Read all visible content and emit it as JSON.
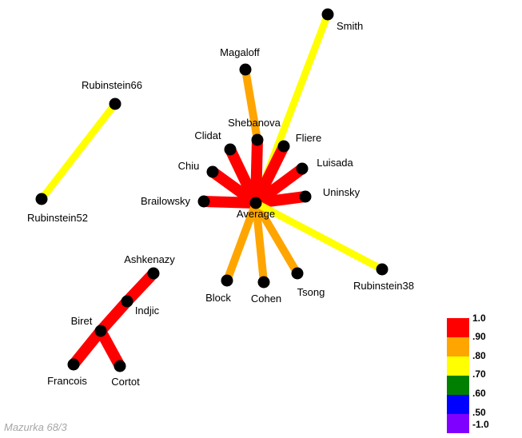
{
  "caption": "Mazurka 68/3",
  "colors": {
    "very_high": "#ff0000",
    "high": "#ffa500",
    "medium": "#ffff00",
    "low": "#008000",
    "lower": "#0000ff",
    "lowest": "#8000ff",
    "node": "#000000"
  },
  "legend": {
    "labels": [
      "1.0",
      ".90",
      ".80",
      ".70",
      ".60",
      ".50",
      "-1.0"
    ],
    "colors": [
      "#ff0000",
      "#ffa500",
      "#ffff00",
      "#008000",
      "#0000ff",
      "#8000ff"
    ]
  },
  "nodes": [
    {
      "id": "average",
      "label": "Average"
    },
    {
      "id": "smith",
      "label": "Smith"
    },
    {
      "id": "magaloff",
      "label": "Magaloff"
    },
    {
      "id": "shebanova",
      "label": "Shebanova"
    },
    {
      "id": "clidat",
      "label": "Clidat"
    },
    {
      "id": "fliere",
      "label": "Fliere"
    },
    {
      "id": "luisada",
      "label": "Luisada"
    },
    {
      "id": "chiu",
      "label": "Chiu"
    },
    {
      "id": "uninsky",
      "label": "Uninsky"
    },
    {
      "id": "brailowsky",
      "label": "Brailowsky"
    },
    {
      "id": "block",
      "label": "Block"
    },
    {
      "id": "cohen",
      "label": "Cohen"
    },
    {
      "id": "tsong",
      "label": "Tsong"
    },
    {
      "id": "rubinstein38",
      "label": "Rubinstein38"
    },
    {
      "id": "rubinstein66",
      "label": "Rubinstein66"
    },
    {
      "id": "rubinstein52",
      "label": "Rubinstein52"
    },
    {
      "id": "ashkenazy",
      "label": "Ashkenazy"
    },
    {
      "id": "indjic",
      "label": "Indjic"
    },
    {
      "id": "biret",
      "label": "Biret"
    },
    {
      "id": "francois",
      "label": "Francois"
    },
    {
      "id": "cortot",
      "label": "Cortot"
    }
  ],
  "edges": [
    {
      "from": "average",
      "to": "smith",
      "level": "medium"
    },
    {
      "from": "shebanova",
      "to": "magaloff",
      "level": "high"
    },
    {
      "from": "average",
      "to": "shebanova",
      "level": "very_high"
    },
    {
      "from": "average",
      "to": "clidat",
      "level": "very_high"
    },
    {
      "from": "average",
      "to": "fliere",
      "level": "very_high"
    },
    {
      "from": "average",
      "to": "luisada",
      "level": "very_high"
    },
    {
      "from": "average",
      "to": "chiu",
      "level": "very_high"
    },
    {
      "from": "average",
      "to": "uninsky",
      "level": "very_high"
    },
    {
      "from": "average",
      "to": "brailowsky",
      "level": "very_high"
    },
    {
      "from": "average",
      "to": "block",
      "level": "high"
    },
    {
      "from": "average",
      "to": "cohen",
      "level": "high"
    },
    {
      "from": "average",
      "to": "tsong",
      "level": "high"
    },
    {
      "from": "average",
      "to": "rubinstein38",
      "level": "medium"
    },
    {
      "from": "rubinstein66",
      "to": "rubinstein52",
      "level": "medium"
    },
    {
      "from": "ashkenazy",
      "to": "indjic",
      "level": "very_high"
    },
    {
      "from": "indjic",
      "to": "biret",
      "level": "very_high"
    },
    {
      "from": "biret",
      "to": "francois",
      "level": "very_high"
    },
    {
      "from": "biret",
      "to": "cortot",
      "level": "very_high"
    }
  ]
}
